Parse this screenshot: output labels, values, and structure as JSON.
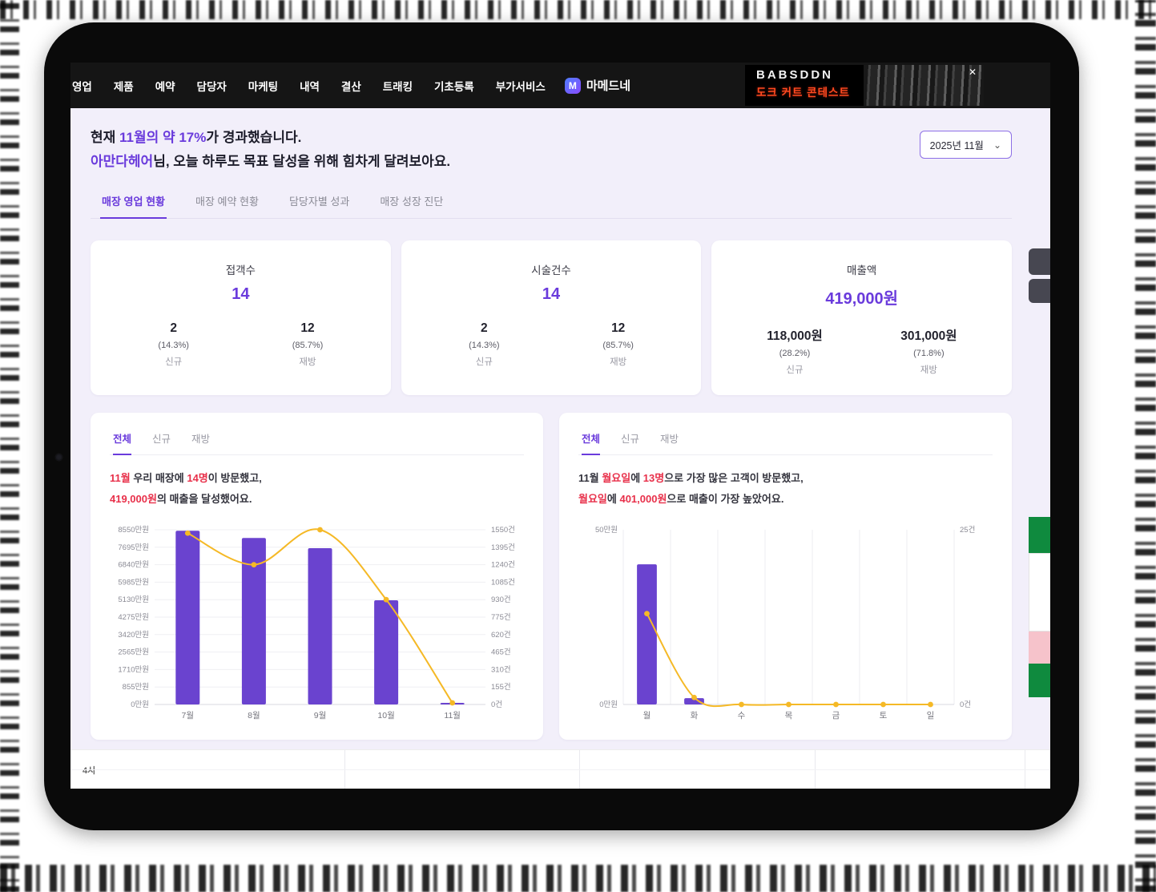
{
  "app": {
    "accent_purple": "#6a3bdc",
    "highlight_red": "#e8304a",
    "background_lavender": "#f2effa",
    "bar_color": "#6a43cf",
    "line_color": "#f5b926"
  },
  "nav": {
    "items": [
      "영업",
      "제품",
      "예약",
      "담당자",
      "마케팅",
      "내역",
      "결산",
      "트래킹",
      "기초등록",
      "부가서비스"
    ],
    "brand": "마메드네",
    "banner": {
      "title": "BABSDDN",
      "subtitle": "도크 커트 콘테스트",
      "close_label": "✕"
    }
  },
  "header": {
    "greeting_line1": [
      {
        "text": "현재 ",
        "hl": false
      },
      {
        "text": "11월의 약 17%",
        "hl": true
      },
      {
        "text": "가 경과했습니다.",
        "hl": false
      }
    ],
    "greeting_line2": [
      {
        "text": "아만다헤어",
        "hl": true
      },
      {
        "text": "님, 오늘 하루도 목표 달성을 위해 힘차게 달려보아요.",
        "hl": false
      }
    ],
    "period_selector": "2025년 11월"
  },
  "main_tabs": [
    {
      "label": "매장 영업 현황",
      "active": true
    },
    {
      "label": "매장 예약 현황",
      "active": false
    },
    {
      "label": "담당자별 성과",
      "active": false
    },
    {
      "label": "매장 성장 진단",
      "active": false
    }
  ],
  "stat_cards": [
    {
      "title": "접객수",
      "total": "14",
      "columns": [
        {
          "value": "2",
          "pct": "(14.3%)",
          "label": "신규"
        },
        {
          "value": "12",
          "pct": "(85.7%)",
          "label": "재방"
        }
      ]
    },
    {
      "title": "시술건수",
      "total": "14",
      "columns": [
        {
          "value": "2",
          "pct": "(14.3%)",
          "label": "신규"
        },
        {
          "value": "12",
          "pct": "(85.7%)",
          "label": "재방"
        }
      ]
    },
    {
      "title": "매출액",
      "total": "419,000원",
      "columns": [
        {
          "value": "118,000원",
          "pct": "(28.2%)",
          "label": "신규"
        },
        {
          "value": "301,000원",
          "pct": "(71.8%)",
          "label": "재방"
        }
      ]
    }
  ],
  "chart_cards": [
    {
      "tabs": [
        {
          "label": "전체",
          "active": true
        },
        {
          "label": "신규",
          "active": false
        },
        {
          "label": "재방",
          "active": false
        }
      ],
      "desc_line1": [
        {
          "text": "11월",
          "hl": true
        },
        {
          "text": " 우리 매장에 ",
          "hl": false
        },
        {
          "text": "14명",
          "hl": true
        },
        {
          "text": "이 방문했고,",
          "hl": false
        }
      ],
      "desc_line2": [
        {
          "text": "419,000원",
          "hl": true
        },
        {
          "text": "의 매출을 달성했어요.",
          "hl": false
        }
      ]
    },
    {
      "tabs": [
        {
          "label": "전체",
          "active": true
        },
        {
          "label": "신규",
          "active": false
        },
        {
          "label": "재방",
          "active": false
        }
      ],
      "desc_line1": [
        {
          "text": "11월 ",
          "hl": false
        },
        {
          "text": "월요일",
          "hl": true
        },
        {
          "text": "에 ",
          "hl": false
        },
        {
          "text": "13명",
          "hl": true
        },
        {
          "text": "으로 가장 많은 고객이 방문했고,",
          "hl": false
        }
      ],
      "desc_line2": [
        {
          "text": "월요일",
          "hl": true
        },
        {
          "text": "에 ",
          "hl": false
        },
        {
          "text": "401,000원",
          "hl": true
        },
        {
          "text": "으로 매출이 가장 높았어요.",
          "hl": false
        }
      ]
    }
  ],
  "chart_data": [
    {
      "type": "bar",
      "categories": [
        "7월",
        "8월",
        "9월",
        "10월",
        "11월"
      ],
      "series": [
        {
          "name": "매출(만원)",
          "type": "bar",
          "axis": "left",
          "color": "#6a43cf",
          "values": [
            8500,
            8150,
            7650,
            5100,
            41.9
          ]
        },
        {
          "name": "건수(건)",
          "type": "line",
          "axis": "right",
          "color": "#f5b926",
          "values": [
            1520,
            1240,
            1550,
            930,
            14
          ]
        }
      ],
      "left_axis": {
        "max": 8550,
        "ticks": [
          "8550만원",
          "7695만원",
          "6840만원",
          "5985만원",
          "5130만원",
          "4275만원",
          "3420만원",
          "2565만원",
          "1710만원",
          "855만원",
          "0만원"
        ]
      },
      "right_axis": {
        "max": 1550,
        "ticks": [
          "1550건",
          "1395건",
          "1240건",
          "1085건",
          "930건",
          "775건",
          "620건",
          "465건",
          "310건",
          "155건",
          "0건"
        ]
      },
      "grid": "horizontal",
      "legend": "off"
    },
    {
      "type": "bar",
      "categories": [
        "월",
        "화",
        "수",
        "목",
        "금",
        "토",
        "일"
      ],
      "series": [
        {
          "name": "매출(만원)",
          "type": "bar",
          "axis": "left",
          "color": "#6a43cf",
          "values": [
            40.1,
            1.8,
            0,
            0,
            0,
            0,
            0
          ]
        },
        {
          "name": "고객수(건)",
          "type": "line",
          "axis": "right",
          "color": "#f5b926",
          "values": [
            13,
            1,
            0,
            0,
            0,
            0,
            0
          ]
        }
      ],
      "left_axis": {
        "max": 50,
        "ticks": [
          "50만원",
          "0만원"
        ]
      },
      "right_axis": {
        "max": 25,
        "ticks": [
          "25건",
          "0건"
        ]
      },
      "grid": "vertical",
      "legend": "off"
    }
  ],
  "footer": {
    "time_label": "4시"
  }
}
